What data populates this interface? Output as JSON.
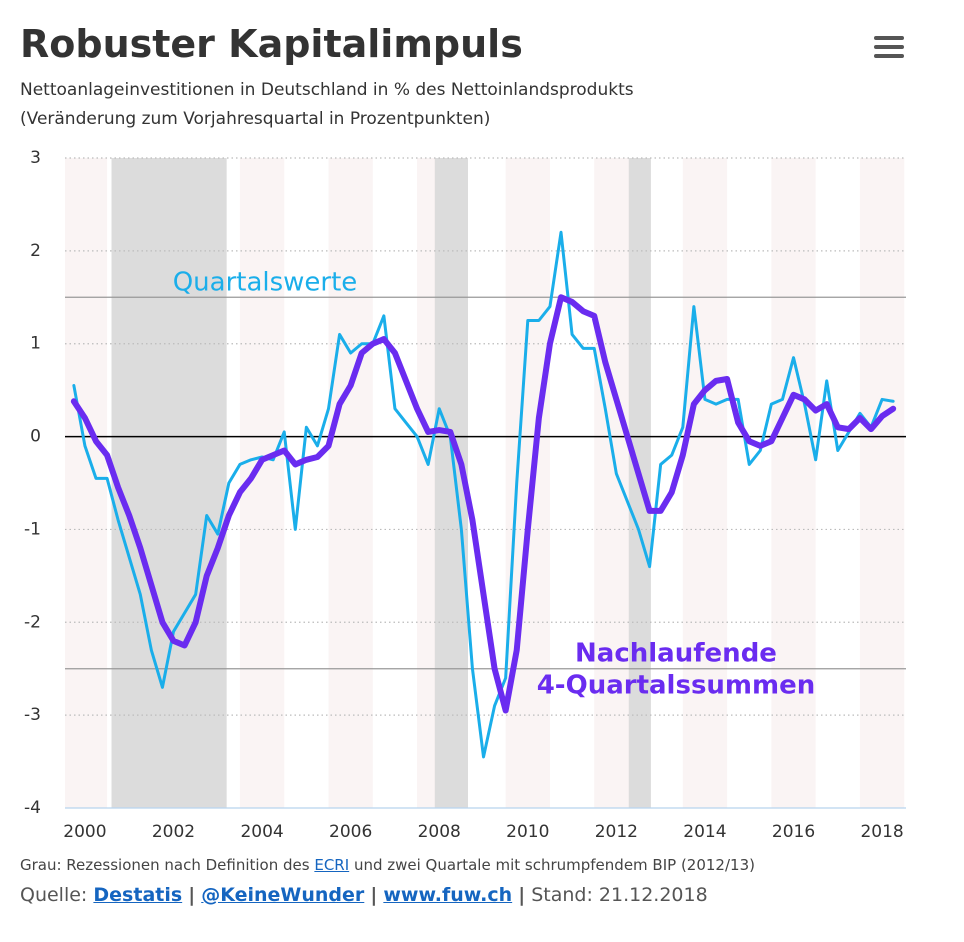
{
  "chart_data": {
    "type": "line",
    "title": "Robuster Kapitalimpuls",
    "subtitle": [
      "Nettoanlageinvestitionen in Deutschland in % des Nettoinlandsprodukts",
      "(Veränderung zum Vorjahresquartal in Prozentpunkten)"
    ],
    "x": [
      1999.75,
      2000,
      2000.25,
      2000.5,
      2000.75,
      2001,
      2001.25,
      2001.5,
      2001.75,
      2002,
      2002.25,
      2002.5,
      2002.75,
      2003,
      2003.25,
      2003.5,
      2003.75,
      2004,
      2004.25,
      2004.5,
      2004.75,
      2005,
      2005.25,
      2005.5,
      2005.75,
      2006,
      2006.25,
      2006.5,
      2006.75,
      2007,
      2007.25,
      2007.5,
      2007.75,
      2008,
      2008.25,
      2008.5,
      2008.75,
      2009,
      2009.25,
      2009.5,
      2009.75,
      2010,
      2010.25,
      2010.5,
      2010.75,
      2011,
      2011.25,
      2011.5,
      2011.75,
      2012,
      2012.25,
      2012.5,
      2012.75,
      2013,
      2013.25,
      2013.5,
      2013.75,
      2014,
      2014.25,
      2014.5,
      2014.75,
      2015,
      2015.25,
      2015.5,
      2015.75,
      2016,
      2016.25,
      2016.5,
      2016.75,
      2017,
      2017.25,
      2017.5,
      2017.75,
      2018,
      2018.25
    ],
    "series": [
      {
        "color": "#1aaeea",
        "width": 3,
        "values": [
          0.55,
          -0.1,
          -0.45,
          -0.45,
          -0.9,
          -1.3,
          -1.7,
          -2.3,
          -2.7,
          -2.1,
          -1.9,
          -1.7,
          -0.85,
          -1.05,
          -0.5,
          -0.3,
          -0.25,
          -0.22,
          -0.25,
          0.05,
          -1.0,
          0.1,
          -0.1,
          0.3,
          1.1,
          0.9,
          1.0,
          1.0,
          1.3,
          0.3,
          0.15,
          0.0,
          -0.3,
          0.3,
          0.0,
          -1.0,
          -2.5,
          -3.45,
          -2.9,
          -2.6,
          -0.5,
          1.25,
          1.25,
          1.4,
          2.2,
          1.1,
          0.95,
          0.95,
          0.3,
          -0.4,
          -0.7,
          -1.0,
          -1.4,
          -0.3,
          -0.2,
          0.1,
          1.4,
          0.4,
          0.35,
          0.4,
          0.4,
          -0.3,
          -0.15,
          0.35,
          0.4,
          0.85,
          0.35,
          -0.25,
          0.6,
          -0.15,
          0.05,
          0.25,
          0.1,
          0.4,
          0.38
        ]
      },
      {
        "color": "#6a2cf0",
        "width": 6,
        "values": [
          0.38,
          0.2,
          -0.05,
          -0.2,
          -0.55,
          -0.85,
          -1.2,
          -1.6,
          -2.0,
          -2.2,
          -2.25,
          -2.0,
          -1.5,
          -1.2,
          -0.85,
          -0.6,
          -0.45,
          -0.25,
          -0.2,
          -0.15,
          -0.3,
          -0.25,
          -0.22,
          -0.1,
          0.35,
          0.55,
          0.9,
          1.0,
          1.05,
          0.9,
          0.6,
          0.3,
          0.05,
          0.07,
          0.05,
          -0.3,
          -0.9,
          -1.7,
          -2.5,
          -2.95,
          -2.3,
          -1.0,
          0.2,
          1.0,
          1.5,
          1.45,
          1.35,
          1.3,
          0.8,
          0.4,
          0.0,
          -0.4,
          -0.8,
          -0.8,
          -0.6,
          -0.2,
          0.35,
          0.5,
          0.6,
          0.62,
          0.15,
          -0.05,
          -0.1,
          -0.05,
          0.2,
          0.45,
          0.4,
          0.28,
          0.35,
          0.1,
          0.08,
          0.2,
          0.08,
          0.22,
          0.3
        ]
      }
    ],
    "annotations": [
      {
        "text": "Quartalswerte",
        "color": "#1aaeea"
      },
      {
        "text": "Nachlaufende",
        "color": "#6a2cf0"
      },
      {
        "text": "4-Quartalssummen",
        "color": "#6a2cf0"
      }
    ],
    "recessions": [
      [
        2000.6,
        2003.2
      ],
      [
        2007.9,
        2008.65
      ],
      [
        2012.28,
        2012.78
      ]
    ],
    "reference_lines": [
      1.5,
      -2.5
    ],
    "xlim": [
      1999.55,
      2018.54
    ],
    "xticks": [
      2000,
      2002,
      2004,
      2006,
      2008,
      2010,
      2012,
      2014,
      2016,
      2018
    ],
    "ylim": [
      -4,
      3
    ],
    "yticks": [
      -4,
      -3,
      -2,
      -1,
      0,
      1,
      2,
      3
    ],
    "grid": true,
    "note": {
      "prefix": "Grau: Rezessionen nach Definition des",
      "link": "ECRI",
      "suffix": "und zwei Quartale mit schrumpfendem BIP (2012/13)"
    },
    "source": {
      "label": "Quelle:",
      "links": [
        "Destatis",
        "@KeineWunder",
        "www.fuw.ch"
      ],
      "separator": "|",
      "stand": "Stand: 21.12.2018"
    }
  }
}
